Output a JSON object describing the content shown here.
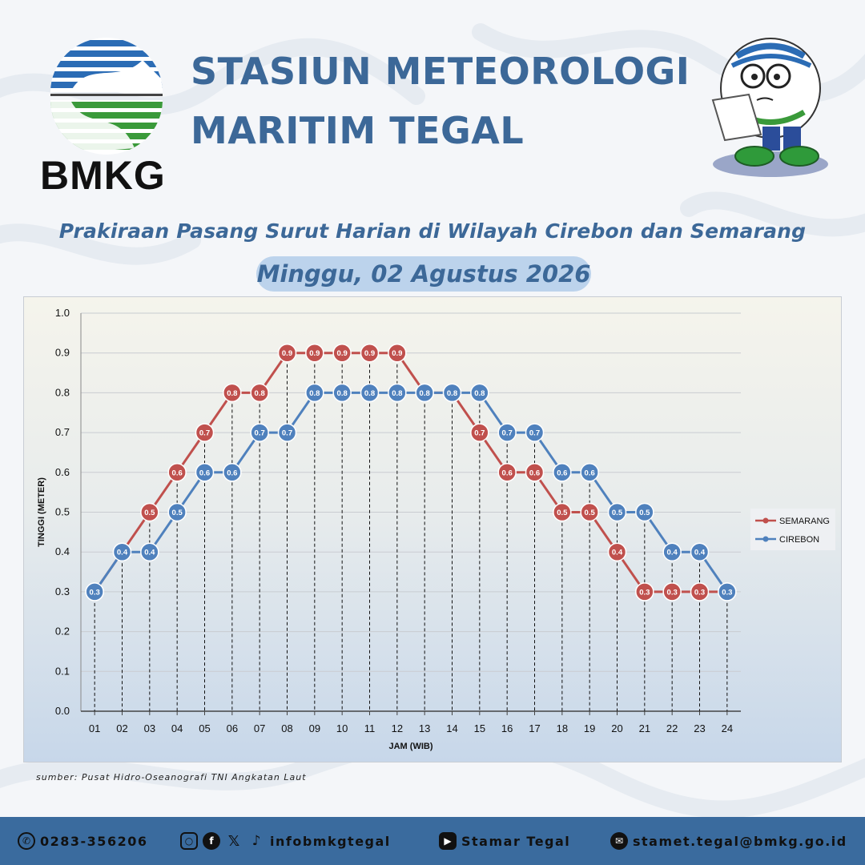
{
  "header": {
    "logo_text": "BMKG",
    "title_line1": "STASIUN METEOROLOGI",
    "title_line2": "MARITIM TEGAL"
  },
  "subtitle": "Prakiraan Pasang Surut Harian di Wilayah Cirebon dan Semarang",
  "date": "Minggu, 02 Agustus 2026",
  "source": "sumber: Pusat Hidro-Oseanografi TNI Angkatan Laut",
  "footer": {
    "phone": "0283-356206",
    "social": "infobmkgtegal",
    "youtube": "Stamar Tegal",
    "email": "stamet.tegal@bmkg.go.id"
  },
  "colors": {
    "title": "#3c6898",
    "semarang": "#c0504d",
    "cirebon": "#4f81bd",
    "footer": "#3a6b9e"
  },
  "chart_data": {
    "type": "line",
    "xlabel": "JAM (WIB)",
    "ylabel": "TINGGI (METER)",
    "ylim": [
      0,
      1.0
    ],
    "yticks": [
      "0.0",
      "0.1",
      "0.2",
      "0.3",
      "0.4",
      "0.5",
      "0.6",
      "0.7",
      "0.8",
      "0.9",
      "1.0"
    ],
    "categories": [
      "01",
      "02",
      "03",
      "04",
      "05",
      "06",
      "07",
      "08",
      "09",
      "10",
      "11",
      "12",
      "13",
      "14",
      "15",
      "16",
      "17",
      "18",
      "19",
      "20",
      "21",
      "22",
      "23",
      "24"
    ],
    "legend_position": "right",
    "grid": true,
    "series": [
      {
        "name": "SEMARANG",
        "color": "#c0504d",
        "values": [
          0.3,
          0.4,
          0.5,
          0.6,
          0.7,
          0.8,
          0.8,
          0.9,
          0.9,
          0.9,
          0.9,
          0.9,
          0.8,
          0.8,
          0.7,
          0.6,
          0.6,
          0.5,
          0.5,
          0.4,
          0.3,
          0.3,
          0.3,
          0.3
        ]
      },
      {
        "name": "CIREBON",
        "color": "#4f81bd",
        "values": [
          0.3,
          0.4,
          0.4,
          0.5,
          0.6,
          0.6,
          0.7,
          0.7,
          0.8,
          0.8,
          0.8,
          0.8,
          0.8,
          0.8,
          0.8,
          0.7,
          0.7,
          0.6,
          0.6,
          0.5,
          0.5,
          0.4,
          0.4,
          0.3
        ]
      }
    ]
  }
}
